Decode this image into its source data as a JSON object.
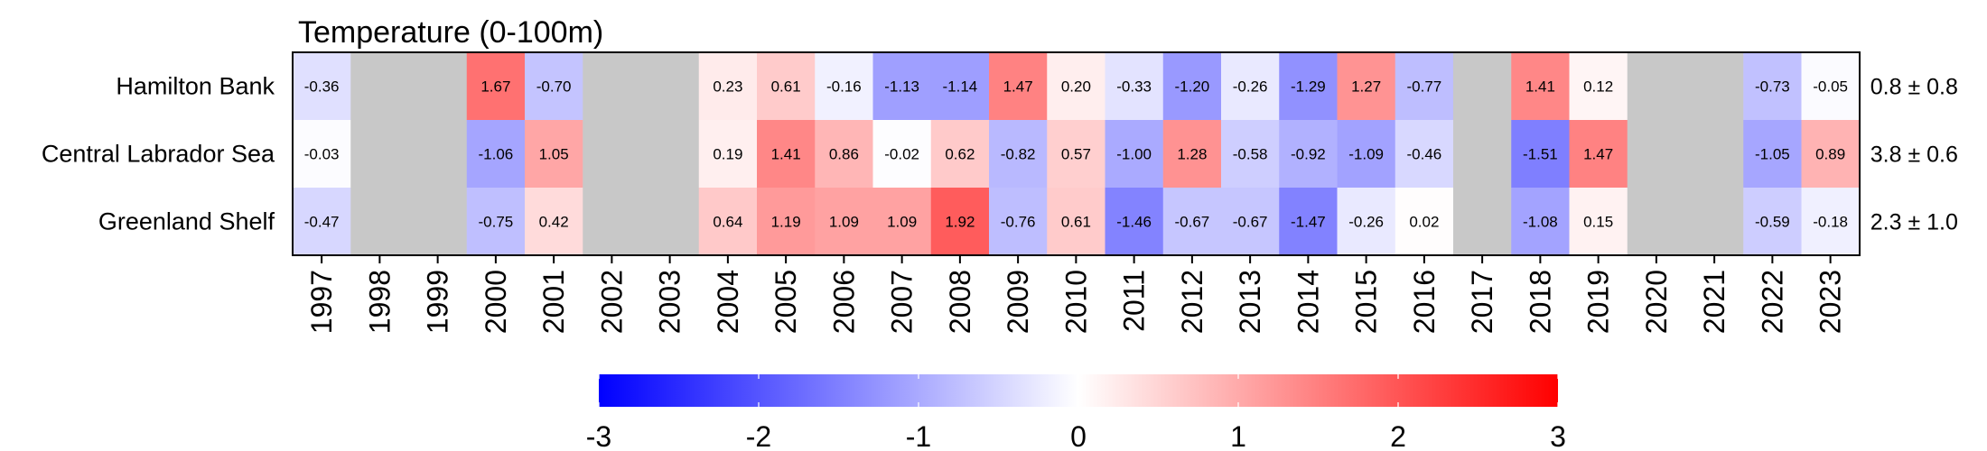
{
  "chart_data": {
    "type": "heatmap",
    "title": "Temperature (0-100m)",
    "years": [
      "1997",
      "1998",
      "1999",
      "2000",
      "2001",
      "2002",
      "2003",
      "2004",
      "2005",
      "2006",
      "2007",
      "2008",
      "2009",
      "2010",
      "2011",
      "2012",
      "2013",
      "2014",
      "2015",
      "2016",
      "2017",
      "2018",
      "2019",
      "2020",
      "2021",
      "2022",
      "2023"
    ],
    "rows": [
      {
        "label": "Hamilton Bank",
        "summary": "0.8 ± 0.8",
        "values": [
          -0.36,
          null,
          null,
          1.67,
          -0.7,
          null,
          null,
          0.23,
          0.61,
          -0.16,
          -1.13,
          -1.14,
          1.47,
          0.2,
          -0.33,
          -1.2,
          -0.26,
          -1.29,
          1.27,
          -0.77,
          null,
          1.41,
          0.12,
          null,
          null,
          -0.73,
          -0.05
        ]
      },
      {
        "label": "Central Labrador Sea",
        "summary": "3.8 ± 0.6",
        "values": [
          -0.03,
          null,
          null,
          -1.06,
          1.05,
          null,
          null,
          0.19,
          1.41,
          0.86,
          -0.02,
          0.62,
          -0.82,
          0.57,
          -1.0,
          1.28,
          -0.58,
          -0.92,
          -1.09,
          -0.46,
          null,
          -1.51,
          1.47,
          null,
          null,
          -1.05,
          0.89
        ]
      },
      {
        "label": "Greenland Shelf",
        "summary": "2.3 ± 1.0",
        "values": [
          -0.47,
          null,
          null,
          -0.75,
          0.42,
          null,
          null,
          0.64,
          1.19,
          1.09,
          1.09,
          1.92,
          -0.76,
          0.61,
          -1.46,
          -0.67,
          -0.67,
          -1.47,
          -0.26,
          0.02,
          null,
          -1.08,
          0.15,
          null,
          null,
          -0.59,
          -0.18
        ]
      }
    ],
    "colorbar": {
      "range": [
        -3,
        3
      ],
      "ticks": [
        -3,
        -2,
        -1,
        0,
        1,
        2,
        3
      ],
      "colors": {
        "min": "#0000ff",
        "mid": "#ffffff",
        "max": "#ff0000",
        "missing": "#c8c8c8"
      }
    }
  }
}
